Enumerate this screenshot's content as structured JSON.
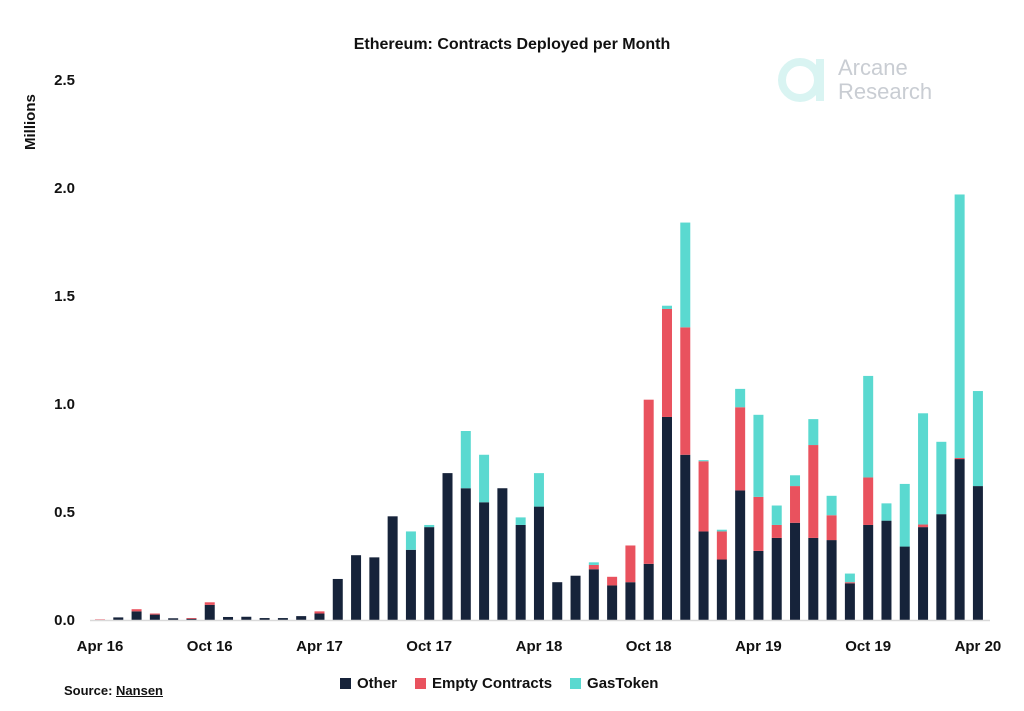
{
  "chart_data": {
    "type": "bar",
    "stacked": true,
    "title": "Ethereum: Contracts Deployed per Month",
    "ylabel": "Millions",
    "xlabel": "",
    "ylim": [
      0,
      2.5
    ],
    "yticks": [
      "0.0",
      "0.5",
      "1.0",
      "1.5",
      "2.0",
      "2.5"
    ],
    "xtick_labels": [
      {
        "index": 0,
        "label": "Apr 16"
      },
      {
        "index": 6,
        "label": "Oct 16"
      },
      {
        "index": 12,
        "label": "Apr 17"
      },
      {
        "index": 18,
        "label": "Oct 17"
      },
      {
        "index": 24,
        "label": "Apr 18"
      },
      {
        "index": 30,
        "label": "Oct 18"
      },
      {
        "index": 36,
        "label": "Apr 19"
      },
      {
        "index": 42,
        "label": "Oct 19"
      },
      {
        "index": 48,
        "label": "Apr 20"
      }
    ],
    "categories": [
      "Apr 16",
      "May 16",
      "Jun 16",
      "Jul 16",
      "Aug 16",
      "Sep 16",
      "Oct 16",
      "Nov 16",
      "Dec 16",
      "Jan 17",
      "Feb 17",
      "Mar 17",
      "Apr 17",
      "May 17",
      "Jun 17",
      "Jul 17",
      "Aug 17",
      "Sep 17",
      "Oct 17",
      "Nov 17",
      "Dec 17",
      "Jan 18",
      "Feb 18",
      "Mar 18",
      "Apr 18",
      "May 18",
      "Jun 18",
      "Jul 18",
      "Aug 18",
      "Sep 18",
      "Oct 18",
      "Nov 18",
      "Dec 18",
      "Jan 19",
      "Feb 19",
      "Mar 19",
      "Apr 19",
      "May 19",
      "Jun 19",
      "Jul 19",
      "Aug 19",
      "Sep 19",
      "Oct 19",
      "Nov 19",
      "Dec 19",
      "Jan 20",
      "Feb 20",
      "Mar 20",
      "Apr 20"
    ],
    "series": [
      {
        "name": "Other",
        "color": "#16233a",
        "values": [
          0.0,
          0.012,
          0.04,
          0.025,
          0.008,
          0.007,
          0.07,
          0.014,
          0.015,
          0.009,
          0.009,
          0.018,
          0.03,
          0.19,
          0.3,
          0.29,
          0.48,
          0.325,
          0.43,
          0.68,
          0.61,
          0.545,
          0.61,
          0.44,
          0.525,
          0.175,
          0.205,
          0.235,
          0.16,
          0.175,
          0.26,
          0.94,
          0.765,
          0.41,
          0.28,
          0.6,
          0.32,
          0.38,
          0.45,
          0.38,
          0.37,
          0.17,
          0.44,
          0.46,
          0.34,
          0.43,
          0.49,
          0.745,
          0.62
        ]
      },
      {
        "name": "Empty Contracts",
        "color": "#e9525e",
        "values": [
          0.003,
          0,
          0.01,
          0.005,
          0,
          0.002,
          0.012,
          0,
          0,
          0,
          0,
          0,
          0.01,
          0,
          0,
          0,
          0,
          0,
          0,
          0,
          0,
          0,
          0,
          0,
          0,
          0,
          0,
          0.02,
          0.04,
          0.17,
          0.76,
          0.5,
          0.59,
          0.325,
          0.13,
          0.385,
          0.25,
          0.06,
          0.17,
          0.43,
          0.115,
          0.005,
          0.22,
          0,
          0,
          0.012,
          0,
          0.005,
          0
        ]
      },
      {
        "name": "GasToken",
        "color": "#5ad9d0",
        "values": [
          0,
          0,
          0,
          0,
          0,
          0,
          0,
          0,
          0,
          0,
          0,
          0,
          0,
          0,
          0,
          0,
          0,
          0.085,
          0.01,
          0,
          0.265,
          0.22,
          0,
          0.035,
          0.155,
          0,
          0,
          0.012,
          0,
          0,
          0,
          0.015,
          0.485,
          0.005,
          0.008,
          0.085,
          0.38,
          0.09,
          0.05,
          0.12,
          0.09,
          0.04,
          0.47,
          0.08,
          0.29,
          0.515,
          0.335,
          1.22,
          0.44
        ]
      }
    ],
    "grid": false,
    "legend": "bottom"
  },
  "source_label": "Source:",
  "source_name": "Nansen",
  "logo": {
    "line1": "Arcane",
    "line2": "Research"
  }
}
